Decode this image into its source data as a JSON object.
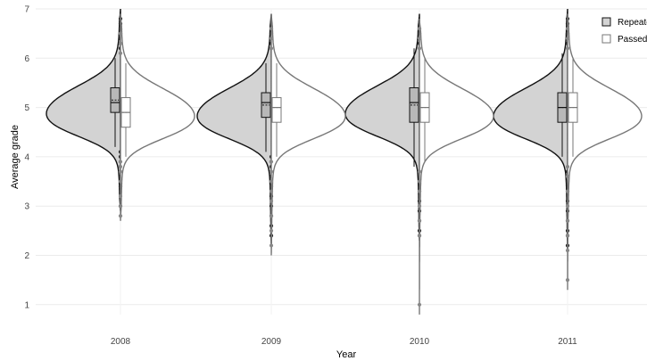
{
  "chart_data": {
    "type": "split-violin",
    "xlabel": "Year",
    "ylabel": "Average grade",
    "categories": [
      "2008",
      "2009",
      "2010",
      "2011"
    ],
    "ylim": [
      0.8,
      7
    ],
    "yticks": [
      1,
      2,
      3,
      4,
      5,
      6,
      7
    ],
    "grid": true,
    "legend": {
      "position": "top-right"
    },
    "series": [
      {
        "name": "Repeated",
        "fill": "#d3d3d3",
        "edge": "#111111",
        "groups": [
          {
            "category": "2008",
            "min": 2.9,
            "max": 7.0,
            "mode": 5.05,
            "box": {
              "q1": 4.9,
              "median": 5.1,
              "q3": 5.4,
              "mean": 5.15,
              "whisker_low": 4.2,
              "whisker_high": 6.0
            },
            "outliers": [
              3.0,
              3.4,
              3.6,
              3.8,
              3.9,
              4.0,
              4.1,
              6.2,
              6.3,
              6.4,
              6.5,
              6.6,
              6.7,
              6.8
            ]
          },
          {
            "category": "2009",
            "min": 2.2,
            "max": 6.9,
            "mode": 5.0,
            "box": {
              "q1": 4.8,
              "median": 5.1,
              "q3": 5.3,
              "mean": 5.05,
              "whisker_low": 4.1,
              "whisker_high": 5.9
            },
            "outliers": [
              2.4,
              2.6,
              2.8,
              3.0,
              3.2,
              3.4,
              3.6,
              3.7,
              3.8,
              3.9,
              4.0,
              6.2,
              6.3,
              6.4,
              6.5,
              6.6
            ]
          },
          {
            "category": "2010",
            "min": 2.3,
            "max": 6.9,
            "mode": 5.05,
            "box": {
              "q1": 4.7,
              "median": 5.1,
              "q3": 5.4,
              "mean": 5.05,
              "whisker_low": 3.8,
              "whisker_high": 6.2
            },
            "outliers": [
              2.4,
              2.5,
              2.7,
              2.9,
              3.1,
              3.3,
              3.5,
              6.3,
              6.4,
              6.5,
              6.6
            ]
          },
          {
            "category": "2011",
            "min": 2.1,
            "max": 7.0,
            "mode": 5.0,
            "box": {
              "q1": 4.7,
              "median": 5.0,
              "q3": 5.3,
              "mean": 5.0,
              "whisker_low": 4.0,
              "whisker_high": 6.1
            },
            "outliers": [
              2.2,
              2.4,
              2.5,
              2.7,
              2.9,
              3.1,
              3.3,
              3.5,
              3.7,
              6.3,
              6.4,
              6.5,
              6.6,
              6.7,
              6.8
            ]
          }
        ]
      },
      {
        "name": "Passed",
        "fill": "#ffffff",
        "edge": "#777777",
        "groups": [
          {
            "category": "2008",
            "min": 2.7,
            "max": 6.9,
            "mode": 5.0,
            "box": {
              "q1": 4.6,
              "median": 4.9,
              "q3": 5.2,
              "mean": 4.9,
              "whisker_low": 4.0,
              "whisker_high": 5.9
            },
            "outliers": [
              2.8,
              3.0,
              3.2,
              3.5,
              3.7,
              3.8,
              3.9,
              6.1,
              6.3,
              6.5
            ]
          },
          {
            "category": "2009",
            "min": 2.0,
            "max": 6.9,
            "mode": 5.0,
            "box": {
              "q1": 4.7,
              "median": 5.0,
              "q3": 5.2,
              "mean": 5.0,
              "whisker_low": 4.0,
              "whisker_high": 5.9
            },
            "outliers": [
              2.2,
              2.5,
              2.8,
              3.1,
              3.3,
              3.5,
              3.7,
              3.9,
              6.2,
              6.4,
              6.6
            ]
          },
          {
            "category": "2010",
            "min": 0.8,
            "max": 6.8,
            "mode": 5.0,
            "box": {
              "q1": 4.7,
              "median": 5.0,
              "q3": 5.3,
              "mean": 5.0,
              "whisker_low": 3.9,
              "whisker_high": 6.0
            },
            "outliers": [
              1.0,
              2.4,
              2.7,
              3.0,
              3.3,
              3.5,
              3.7,
              6.2,
              6.4,
              6.6
            ]
          },
          {
            "category": "2011",
            "min": 1.3,
            "max": 6.9,
            "mode": 5.0,
            "box": {
              "q1": 4.7,
              "median": 5.0,
              "q3": 5.3,
              "mean": 5.0,
              "whisker_low": 4.0,
              "whisker_high": 6.0
            },
            "outliers": [
              1.5,
              2.1,
              2.4,
              2.7,
              3.0,
              3.3,
              3.6,
              3.8,
              6.2,
              6.4,
              6.6
            ]
          }
        ]
      }
    ]
  }
}
